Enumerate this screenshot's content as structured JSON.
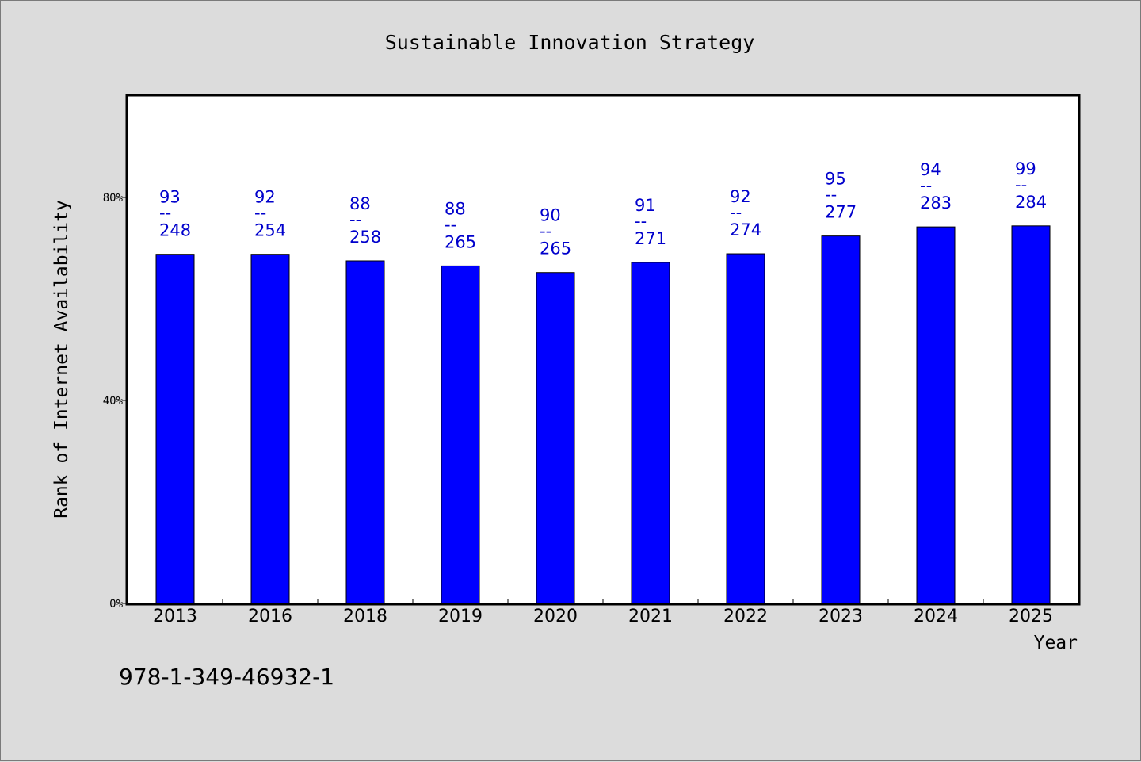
{
  "chart_data": {
    "type": "bar",
    "title": "Sustainable Innovation Strategy",
    "xlabel": "Year",
    "ylabel": "Rank of Internet Availability",
    "categories": [
      "2013",
      "2016",
      "2018",
      "2019",
      "2020",
      "2021",
      "2022",
      "2023",
      "2024",
      "2025"
    ],
    "series": [
      {
        "values": [
          68.8,
          68.8,
          67.5,
          66.5,
          65.2,
          67.2,
          68.9,
          72.4,
          74.2,
          74.4
        ],
        "label_top": [
          "93",
          "92",
          "88",
          "88",
          "90",
          "91",
          "92",
          "95",
          "94",
          "99"
        ],
        "label_bottom": [
          "248",
          "254",
          "258",
          "265",
          "265",
          "271",
          "274",
          "277",
          "283",
          "284"
        ],
        "label_separator": "--"
      }
    ],
    "ylim": [
      0,
      100
    ],
    "yticks": [
      0,
      40,
      80
    ],
    "ytick_labels": [
      "0%",
      "40%",
      "80%"
    ],
    "grid": false,
    "colors": {
      "bar": "#0000ff",
      "bar_edge": "#000000",
      "label": "#0000cc",
      "plot_bg": "#ffffff",
      "page_bg": "#dcdcdc"
    }
  },
  "footer": {
    "isbn": "978-1-349-46932-1"
  }
}
